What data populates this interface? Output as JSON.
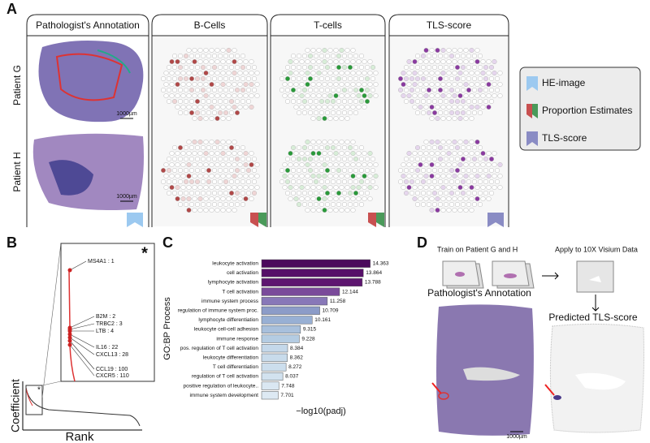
{
  "panel_a": {
    "label": "A",
    "columns": [
      "Pathologist's Annotation",
      "B-Cells",
      "T-cells",
      "TLS-score"
    ],
    "rows": [
      "Patient G",
      "Patient H"
    ],
    "scale_bar": "1000µm",
    "legend": [
      "HE-image",
      "Proportion Estimates",
      "TLS-score"
    ]
  },
  "panel_b": {
    "label": "B",
    "y_label": "Coefficient",
    "x_label": "Rank",
    "marker": "*",
    "genes": [
      "MS4A1 : 1",
      "B2M : 2",
      "TRBC2 : 3",
      "LTB : 4",
      "IL16 : 22",
      "CXCL13 : 28",
      "CCL19 : 100",
      "CXCR5 : 110"
    ]
  },
  "panel_c_label": "C",
  "chart_data": {
    "type": "barh",
    "y_label": "GO:BP Process",
    "x_label": "−log10(padj)",
    "categories": [
      "leukocyte activation",
      "cell activation",
      "lymphocyte activation",
      "T cell activation",
      "immune system process",
      "regulation of immune system proc.",
      "lymphocyte differentiation",
      "leukocyte cell-cell adhesion",
      "immune response",
      "pos. regulation of T cell activation",
      "leukocyte differentiation",
      "T cell differentiation",
      "regulation of T cell activation",
      "positive regulation of leukocyte..",
      "immune system development"
    ],
    "values": [
      14.363,
      13.864,
      13.788,
      12.144,
      11.258,
      10.709,
      10.161,
      9.315,
      9.228,
      8.384,
      8.362,
      8.272,
      8.037,
      7.748,
      7.701
    ],
    "colors": [
      "#4b0a5c",
      "#560f68",
      "#5e1670",
      "#7a4a9a",
      "#8878b8",
      "#8c9cc8",
      "#98b0d4",
      "#a8c0dc",
      "#b4cce2",
      "#c4d8ea",
      "#c8dbeb",
      "#ccdeed",
      "#d2e2ef",
      "#dae7f2",
      "#dde9f3"
    ],
    "xlim": [
      6.5,
      14.5
    ]
  },
  "panel_d": {
    "label": "D",
    "train": "Train on Patient G and H",
    "apply": "Apply to 10X Visium Data",
    "annotation_title": "Pathologist's Annotation",
    "prediction_title": "Predicted TLS-score",
    "scale_bar": "1000µm"
  }
}
